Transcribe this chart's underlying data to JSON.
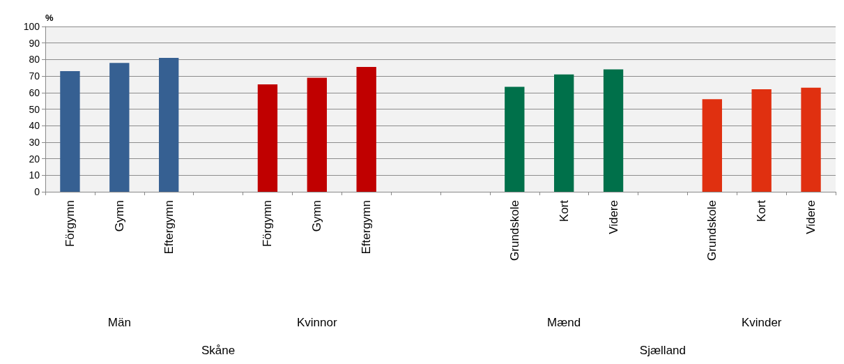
{
  "chart_data": {
    "type": "bar",
    "ylabel": "%",
    "categories": [
      "Förgymn",
      "Gymn",
      "Eftergymn",
      null,
      "Förgymn",
      "Gymn",
      "Eftergymn",
      null,
      null,
      "Grundskole",
      "Kort",
      "Videre",
      null,
      "Grundskole",
      "Kort",
      "Videre"
    ],
    "values": [
      73,
      78,
      81,
      null,
      65,
      69,
      75.5,
      null,
      null,
      63.5,
      71,
      74,
      null,
      56,
      62,
      63
    ],
    "colors": [
      "#366092",
      "#366092",
      "#366092",
      null,
      "#c00000",
      "#c00000",
      "#c00000",
      null,
      null,
      "#00704a",
      "#00704a",
      "#00704a",
      null,
      "#e03010",
      "#e03010",
      "#e03010"
    ],
    "annotations": [
      "Män",
      "Kvinnor",
      "Mænd",
      "Kvinder",
      "Skåne",
      "Sjælland"
    ],
    "ylim": [
      0,
      100
    ],
    "yticks": [
      0,
      10,
      20,
      30,
      40,
      50,
      60,
      70,
      80,
      90,
      100
    ],
    "grid": true
  }
}
